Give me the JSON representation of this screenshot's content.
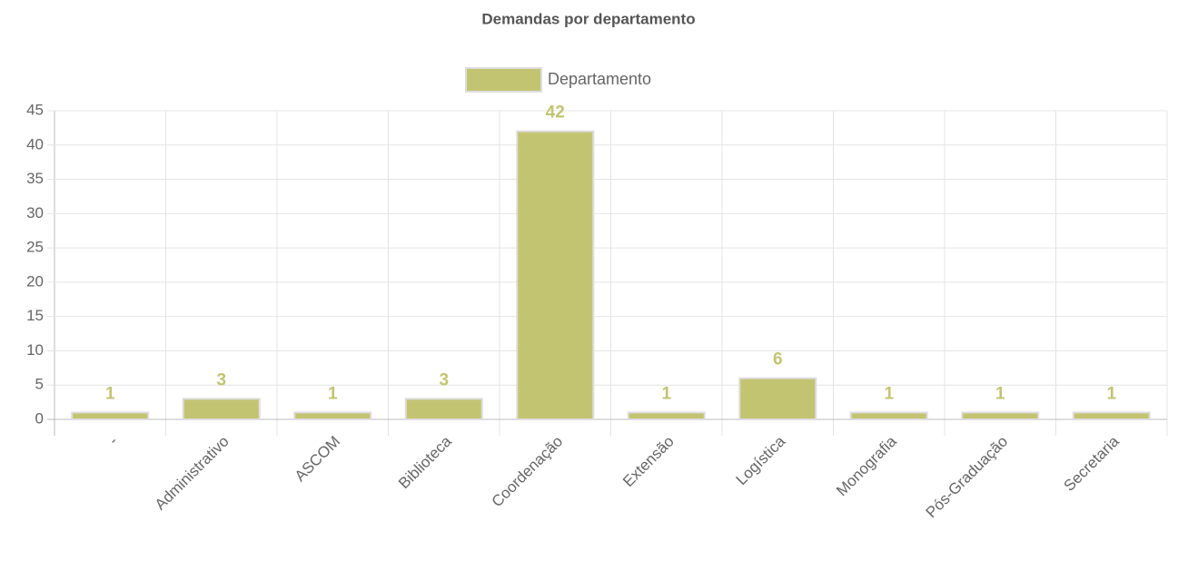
{
  "chart_data": {
    "type": "bar",
    "title": "Demandas por departamento",
    "legend": {
      "position": "top",
      "name": "Departamento"
    },
    "categories": [
      "-",
      "Administrativo",
      "ASCOM",
      "Biblioteca",
      "Coordenação",
      "Extensão",
      "Logística",
      "Monografia",
      "Pós-Graduação",
      "Secretaria"
    ],
    "values": [
      1,
      3,
      1,
      3,
      42,
      1,
      6,
      1,
      1,
      1
    ],
    "color": "#c2c472",
    "ylim": [
      0,
      45
    ],
    "yticks": [
      0,
      5,
      10,
      15,
      20,
      25,
      30,
      35,
      40,
      45
    ],
    "grid": true
  }
}
